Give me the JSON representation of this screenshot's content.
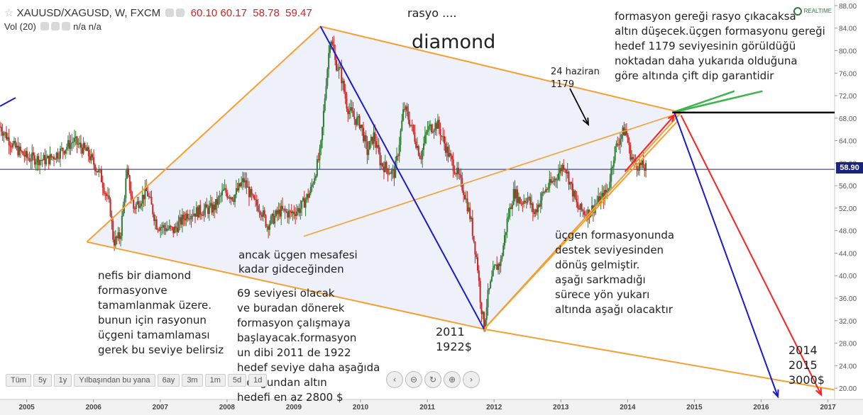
{
  "header": {
    "symbol": "XAUUSD/XAGUSD, W, FXCM",
    "o": "60.10",
    "h": "60.17",
    "l": "58.78",
    "c": "59.47",
    "vol_label": "Vol (20)",
    "vol_values": "n/a n/a",
    "realtime": "REALTIME"
  },
  "annotations": {
    "rasyo": "rasyo ....",
    "diamond": "diamond",
    "top_right": "formasyon gereği rasyo çıkacaksa\naltın düşecek.üçgen formasyonu gereği\nhedef 1179 seviyesinin görüldüğü\nnoktadan daha yukarıda olduğuna\ngöre altında çift dip garantidir",
    "haziran": "24 haziran\n1179",
    "left_text": "nefis bir diamond\nformasyonve\ntamamlanmak üzere.\nbunun için rasyonun\nüçgeni tamamlaması\ngerek bu seviye belirsiz",
    "middle_1": "ancak üçgen mesafesi\nkadar gideceğinden",
    "middle_2": "69 seviyesi olacak\nve buradan dönerek\nformasyon çalışmaya\nbaşlayacak.formasyon\nun dibi 2011 de 1922\nhedef seviye daha  aşağıda\nolduğundan altın\nhedefi en az 2800 $",
    "y2011": "2011\n1922$",
    "right_text": "üçgen formasyonunda\ndestek seviyesinden\ndönüş gelmiştir.\naşağı sarkmadığı\nsürece yön yukarı\naltında aşağı olacaktır",
    "target": "2014\n2015\n3000$"
  },
  "range_buttons": [
    "Tüm",
    "5y",
    "1y",
    "Yılbaşından bu yana",
    "6ay",
    "3m",
    "1m",
    "5d",
    "1d"
  ],
  "nav_buttons": [
    "‹",
    "⊖",
    "↻",
    "⊕",
    "›"
  ],
  "colors": {
    "up": "#2e7d32",
    "down": "#c62828",
    "orange": "#f5a033",
    "blue": "#1a1acc",
    "red": "#ff2020",
    "green": "#3cb44b",
    "price_line": "#1a237e"
  },
  "chart_data": {
    "type": "candlestick",
    "symbol": "XAUUSD/XAGUSD",
    "timeframe": "W",
    "x_ticks": [
      "2005",
      "2006",
      "2007",
      "2008",
      "2009",
      "2010",
      "2011",
      "2012",
      "2013",
      "2014",
      "2015",
      "2016",
      "2017"
    ],
    "y_ticks": [
      20,
      24,
      28,
      32,
      36,
      40,
      44,
      48,
      52,
      56,
      60,
      64,
      68,
      72,
      76,
      80,
      84,
      88
    ],
    "ylim": [
      18,
      89
    ],
    "xlim": [
      2004.6,
      2017.1
    ],
    "current_price": 58.9,
    "current_price_label": "58.90",
    "price_path": [
      [
        2004.6,
        66.5
      ],
      [
        2004.8,
        63
      ],
      [
        2005.0,
        61
      ],
      [
        2005.3,
        60.5
      ],
      [
        2005.5,
        62
      ],
      [
        2005.7,
        64
      ],
      [
        2005.9,
        62
      ],
      [
        2006.1,
        58
      ],
      [
        2006.25,
        52
      ],
      [
        2006.3,
        46
      ],
      [
        2006.4,
        47
      ],
      [
        2006.5,
        58.5
      ],
      [
        2006.6,
        52
      ],
      [
        2006.8,
        55
      ],
      [
        2006.95,
        49
      ],
      [
        2007.2,
        48
      ],
      [
        2007.4,
        51
      ],
      [
        2007.6,
        51.5
      ],
      [
        2007.8,
        52
      ],
      [
        2007.95,
        55
      ],
      [
        2008.1,
        54
      ],
      [
        2008.25,
        57
      ],
      [
        2008.4,
        53
      ],
      [
        2008.5,
        52
      ],
      [
        2008.6,
        49
      ],
      [
        2008.8,
        51.5
      ],
      [
        2008.95,
        51
      ],
      [
        2009.1,
        52
      ],
      [
        2009.25,
        55
      ],
      [
        2009.4,
        62
      ],
      [
        2009.48,
        74
      ],
      [
        2009.55,
        83
      ],
      [
        2009.62,
        78
      ],
      [
        2009.7,
        76
      ],
      [
        2009.8,
        70
      ],
      [
        2009.9,
        68
      ],
      [
        2010.0,
        67
      ],
      [
        2010.1,
        62
      ],
      [
        2010.2,
        65
      ],
      [
        2010.3,
        60
      ],
      [
        2010.5,
        58
      ],
      [
        2010.55,
        61
      ],
      [
        2010.65,
        70
      ],
      [
        2010.75,
        67
      ],
      [
        2010.9,
        61
      ],
      [
        2011.0,
        66
      ],
      [
        2011.15,
        67
      ],
      [
        2011.3,
        62
      ],
      [
        2011.45,
        58
      ],
      [
        2011.55,
        55
      ],
      [
        2011.65,
        50
      ],
      [
        2011.75,
        42
      ],
      [
        2011.8,
        35
      ],
      [
        2011.85,
        31
      ],
      [
        2011.9,
        36
      ],
      [
        2012.0,
        41
      ],
      [
        2012.1,
        42.5
      ],
      [
        2012.2,
        50
      ],
      [
        2012.3,
        55
      ],
      [
        2012.4,
        53
      ],
      [
        2012.5,
        54
      ],
      [
        2012.6,
        51
      ],
      [
        2012.75,
        55
      ],
      [
        2012.9,
        57
      ],
      [
        2013.05,
        60
      ],
      [
        2013.15,
        56
      ],
      [
        2013.25,
        52
      ],
      [
        2013.4,
        51
      ],
      [
        2013.55,
        53
      ],
      [
        2013.7,
        55
      ],
      [
        2013.8,
        62
      ],
      [
        2013.9,
        65
      ],
      [
        2013.97,
        66
      ],
      [
        2014.03,
        62
      ],
      [
        2014.1,
        60
      ],
      [
        2014.2,
        59.5
      ],
      [
        2014.28,
        59
      ]
    ],
    "drawings": {
      "diamond_outer": [
        [
          2005.9,
          46
        ],
        [
          2009.4,
          84.3
        ],
        [
          2014.8,
          69
        ],
        [
          2011.85,
          30.5
        ],
        [
          2005.9,
          46
        ]
      ],
      "inner_line": [
        [
          2009.15,
          47
        ],
        [
          2014.85,
          69.2
        ]
      ],
      "lower_line": [
        [
          2011.85,
          30.5
        ],
        [
          2017.1,
          19.7
        ]
      ],
      "upper_support": [
        [
          2011.85,
          30.5
        ],
        [
          2014.75,
          67.5
        ]
      ],
      "blue_lines": [
        [
          [
            2009.4,
            84.3
          ],
          [
            2011.85,
            30.5
          ]
        ],
        [
          [
            2014.7,
            69
          ],
          [
            2016.25,
            18.5
          ]
        ]
      ],
      "red_lines": [
        [
          [
            2013.96,
            58.5
          ],
          [
            2014.7,
            68.5
          ]
        ],
        [
          [
            2014.8,
            68.5
          ],
          [
            2016.9,
            18.8
          ]
        ]
      ],
      "green_lines": [
        [
          [
            2014.67,
            69
          ],
          [
            2015.6,
            72.8
          ]
        ],
        [
          [
            2014.67,
            69
          ],
          [
            2016.02,
            72.8
          ]
        ]
      ],
      "black_level": 69
    }
  }
}
